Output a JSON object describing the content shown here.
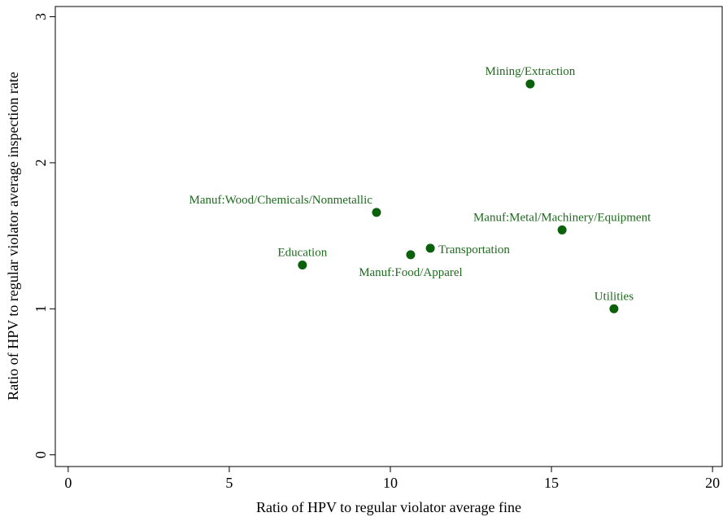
{
  "chart_data": {
    "type": "scatter",
    "xlabel": "Ratio of HPV to regular violator average fine",
    "ylabel": "Ratio of HPV to regular violator average inspection rate",
    "labels": [
      "Mining/Extraction",
      "Manuf:Wood/Chemicals/Nonmetallic",
      "Manuf:Metal/Machinery/Equipment",
      "Education",
      "Manuf:Food/Apparel",
      "Transportation",
      "Utilities"
    ],
    "x": [
      14.34,
      9.57,
      15.33,
      7.27,
      10.63,
      11.24,
      16.94
    ],
    "values": [
      2.54,
      1.66,
      1.54,
      1.3,
      1.37,
      1.415,
      1.0
    ],
    "color": "#0b610b",
    "xlim": [
      -0.4,
      20.3
    ],
    "ylim": [
      -0.08,
      3.07
    ],
    "xticks": [
      0,
      5,
      10,
      15,
      20
    ],
    "yticks": [
      0,
      1,
      2,
      3
    ]
  }
}
